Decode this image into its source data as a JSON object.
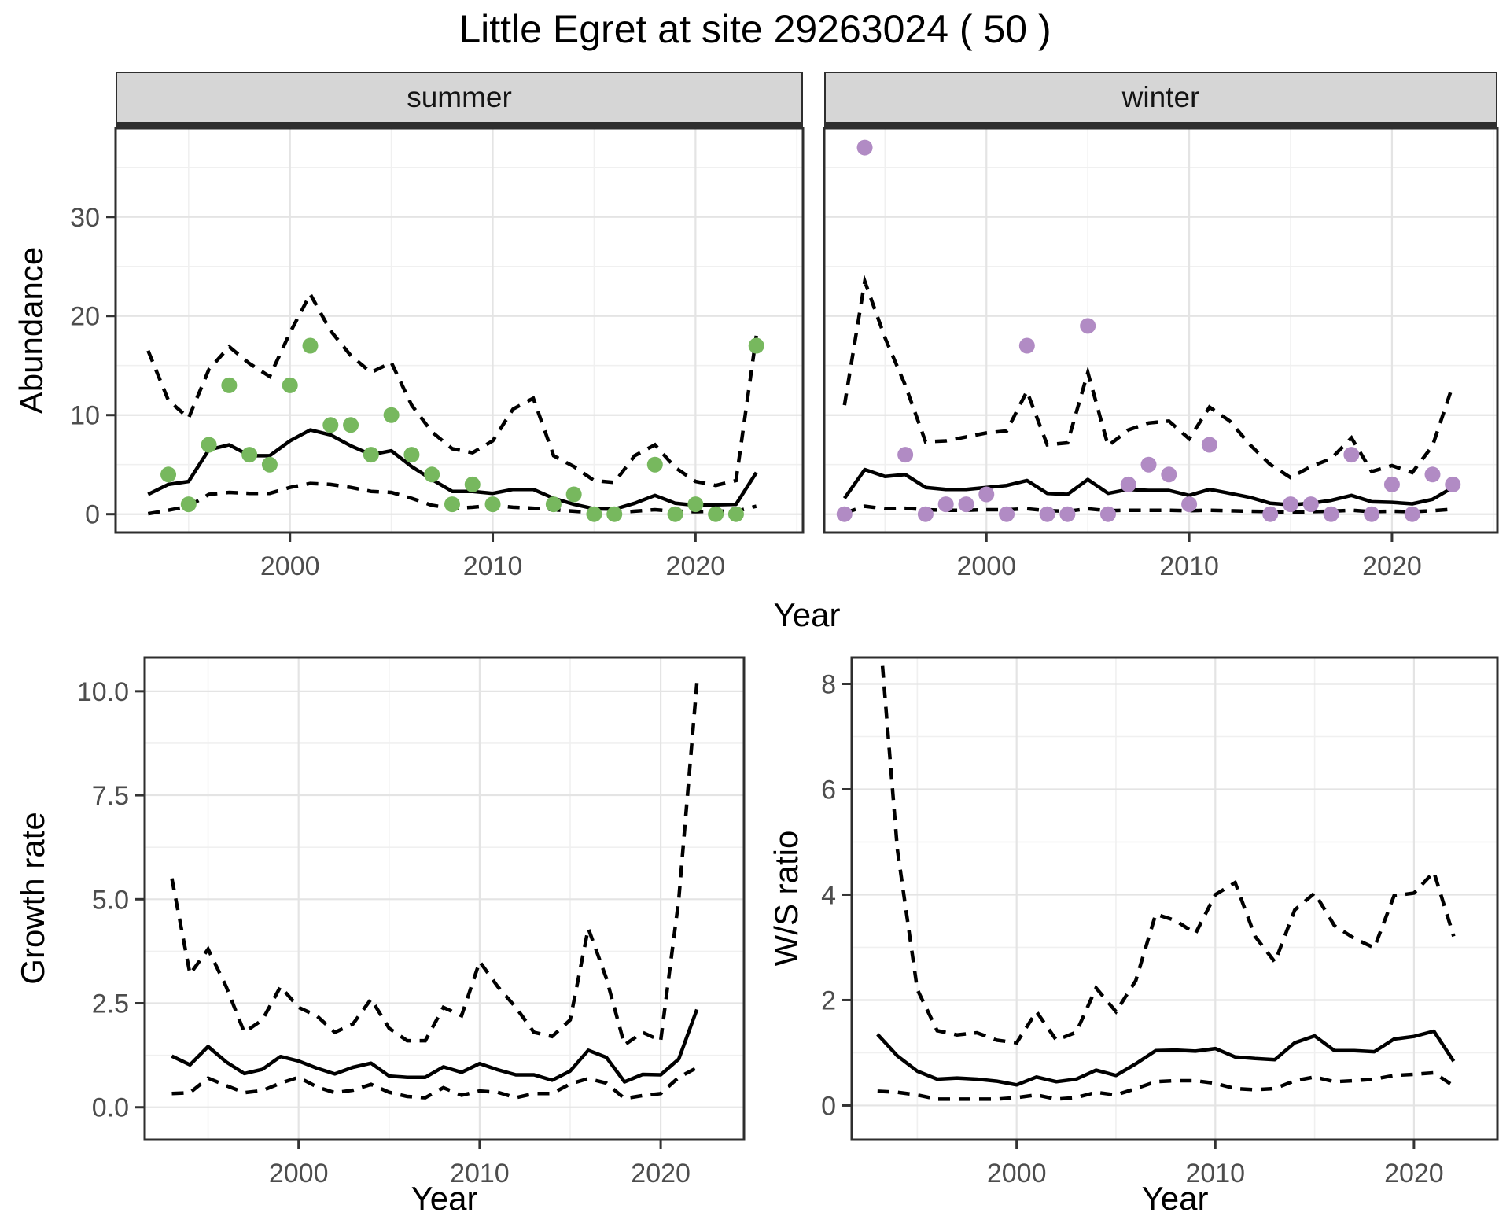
{
  "title": "Little Egret at site 29263024 ( 50 )",
  "facets": [
    "summer",
    "winter"
  ],
  "labels": {
    "year": "Year",
    "abundance": "Abundance",
    "growth_rate": "Growth rate",
    "ws_ratio": "W/S ratio"
  },
  "colors": {
    "summer_point": "#77B85E",
    "winter_point": "#B18BC4",
    "line": "#000000",
    "panel_border": "#2e2e2e",
    "grid_major": "#e4e4e4",
    "grid_minor": "#f0f0f0",
    "tick_text": "#4d4d4d",
    "strip_bg": "#d6d6d6"
  },
  "chart_data": [
    {
      "id": "summer",
      "type": "line+scatter",
      "facet_label": "summer",
      "xlabel": "Year",
      "ylabel": "Abundance",
      "xlim": [
        1991.4,
        2025.3
      ],
      "ylim": [
        -1.85,
        38.95
      ],
      "x_ticks": [
        2000,
        2010,
        2020
      ],
      "x_tick_labels": [
        "2000",
        "2010",
        "2020"
      ],
      "x_minor": [
        1995,
        2005,
        2015,
        2025
      ],
      "y_ticks": [
        0,
        10,
        20,
        30
      ],
      "y_tick_labels": [
        "0",
        "10",
        "20",
        "30"
      ],
      "y_minor": [
        5,
        15,
        25,
        35
      ],
      "show_y_tick_labels": true,
      "point_color": "#77B85E",
      "points": {
        "years": [
          1994,
          1995,
          1996,
          1997,
          1998,
          1999,
          2000,
          2001,
          2002,
          2003,
          2004,
          2005,
          2006,
          2007,
          2008,
          2009,
          2010,
          2013,
          2014,
          2015,
          2016,
          2018,
          2019,
          2020,
          2021,
          2022,
          2023
        ],
        "values": [
          4,
          1,
          7,
          13,
          6,
          5,
          13,
          17,
          9,
          9,
          6,
          10,
          6,
          4,
          1,
          3,
          1,
          1,
          2,
          0,
          0,
          5,
          0,
          1,
          0,
          0,
          17
        ]
      },
      "series": {
        "years": [
          1993,
          1994,
          1995,
          1996,
          1997,
          1998,
          1999,
          2000,
          2001,
          2002,
          2003,
          2004,
          2005,
          2006,
          2007,
          2008,
          2009,
          2010,
          2011,
          2012,
          2013,
          2014,
          2015,
          2016,
          2017,
          2018,
          2019,
          2020,
          2021,
          2022,
          2023
        ],
        "mean": [
          2.0,
          3.0,
          3.3,
          6.5,
          7.0,
          5.9,
          5.9,
          7.4,
          8.5,
          8.0,
          6.9,
          6.0,
          6.4,
          4.8,
          3.5,
          2.3,
          2.3,
          2.1,
          2.5,
          2.5,
          1.6,
          1.0,
          0.55,
          0.5,
          1.1,
          1.9,
          1.1,
          0.9,
          0.95,
          1.0,
          4.2
        ],
        "upper": [
          16.5,
          11.5,
          9.7,
          14.6,
          16.9,
          15.2,
          13.9,
          18.3,
          22.2,
          18.5,
          16.0,
          14.3,
          15.3,
          11.0,
          8.3,
          6.6,
          6.2,
          7.4,
          10.6,
          11.7,
          5.9,
          4.8,
          3.4,
          3.2,
          5.9,
          7.0,
          4.7,
          3.3,
          2.9,
          3.4,
          18.0
        ],
        "lower": [
          0.05,
          0.4,
          0.8,
          2.0,
          2.2,
          2.1,
          2.1,
          2.7,
          3.1,
          3.0,
          2.7,
          2.3,
          2.2,
          1.6,
          0.9,
          0.6,
          0.7,
          0.9,
          0.7,
          0.6,
          0.45,
          0.3,
          0.15,
          0.15,
          0.3,
          0.45,
          0.3,
          0.25,
          0.3,
          0.3,
          0.8
        ]
      }
    },
    {
      "id": "winter",
      "type": "line+scatter",
      "facet_label": "winter",
      "xlabel": "Year",
      "ylabel": "Abundance",
      "xlim": [
        1992.0,
        2025.2
      ],
      "ylim": [
        -1.85,
        38.95
      ],
      "x_ticks": [
        2000,
        2010,
        2020
      ],
      "x_tick_labels": [
        "2000",
        "2010",
        "2020"
      ],
      "x_minor": [
        1995,
        2005,
        2015,
        2025
      ],
      "y_ticks": [
        0,
        10,
        20,
        30
      ],
      "y_tick_labels": [
        "0",
        "10",
        "20",
        "30"
      ],
      "y_minor": [
        5,
        15,
        25,
        35
      ],
      "show_y_tick_labels": false,
      "point_color": "#B18BC4",
      "points": {
        "years": [
          1993,
          1994,
          1996,
          1997,
          1998,
          1999,
          2000,
          2001,
          2002,
          2003,
          2004,
          2005,
          2006,
          2007,
          2008,
          2009,
          2010,
          2011,
          2014,
          2015,
          2016,
          2017,
          2018,
          2019,
          2020,
          2021,
          2022,
          2023
        ],
        "values": [
          0,
          37,
          6,
          0,
          1,
          1,
          2,
          0,
          17,
          0,
          0,
          19,
          0,
          3,
          5,
          4,
          1,
          7,
          0,
          1,
          1,
          0,
          6,
          0,
          3,
          0,
          4,
          3
        ]
      },
      "series": {
        "years": [
          1993,
          1994,
          1995,
          1996,
          1997,
          1998,
          1999,
          2000,
          2001,
          2002,
          2003,
          2004,
          2005,
          2006,
          2007,
          2008,
          2009,
          2010,
          2011,
          2012,
          2013,
          2014,
          2015,
          2016,
          2017,
          2018,
          2019,
          2020,
          2021,
          2022,
          2023
        ],
        "mean": [
          1.6,
          4.5,
          3.8,
          4.0,
          2.7,
          2.5,
          2.5,
          2.7,
          2.9,
          3.4,
          2.1,
          2.0,
          3.5,
          2.1,
          2.5,
          2.4,
          2.4,
          1.9,
          2.5,
          2.1,
          1.7,
          1.1,
          0.95,
          1.1,
          1.4,
          1.9,
          1.25,
          1.2,
          1.05,
          1.5,
          2.7
        ],
        "upper": [
          11.0,
          23.5,
          17.8,
          13.0,
          7.3,
          7.4,
          7.8,
          8.2,
          8.4,
          12.4,
          7.0,
          7.2,
          14.3,
          6.9,
          8.5,
          9.2,
          9.4,
          7.6,
          10.8,
          9.4,
          7.0,
          5.0,
          3.7,
          4.8,
          5.6,
          7.7,
          4.3,
          4.9,
          4.2,
          6.9,
          13.0
        ],
        "lower": [
          0.1,
          0.8,
          0.55,
          0.6,
          0.45,
          0.4,
          0.4,
          0.45,
          0.45,
          0.55,
          0.35,
          0.3,
          0.55,
          0.35,
          0.4,
          0.4,
          0.4,
          0.35,
          0.4,
          0.35,
          0.3,
          0.25,
          0.2,
          0.25,
          0.3,
          0.4,
          0.25,
          0.3,
          0.25,
          0.35,
          0.5
        ]
      }
    },
    {
      "id": "growth",
      "type": "line",
      "facet_label": null,
      "xlabel": "Year",
      "ylabel": "Growth rate",
      "xlim": [
        1991.5,
        2024.6
      ],
      "ylim": [
        -0.78,
        10.81
      ],
      "x_ticks": [
        2000,
        2010,
        2020
      ],
      "x_tick_labels": [
        "2000",
        "2010",
        "2020"
      ],
      "x_minor": [
        1995,
        2005,
        2015
      ],
      "y_ticks": [
        0.0,
        2.5,
        5.0,
        7.5,
        10.0
      ],
      "y_tick_labels": [
        "0.0",
        "2.5",
        "5.0",
        "7.5",
        "10.0"
      ],
      "y_minor": [
        1.25,
        3.75,
        6.25,
        8.75
      ],
      "show_y_tick_labels": true,
      "point_color": null,
      "points": null,
      "series": {
        "years": [
          1993,
          1994,
          1995,
          1996,
          1997,
          1998,
          1999,
          2000,
          2001,
          2002,
          2003,
          2004,
          2005,
          2006,
          2007,
          2008,
          2009,
          2010,
          2011,
          2012,
          2013,
          2014,
          2015,
          2016,
          2017,
          2018,
          2019,
          2020,
          2021,
          2022
        ],
        "mean": [
          1.23,
          1.02,
          1.46,
          1.09,
          0.81,
          0.91,
          1.22,
          1.11,
          0.94,
          0.8,
          0.96,
          1.06,
          0.75,
          0.72,
          0.72,
          0.97,
          0.84,
          1.05,
          0.9,
          0.78,
          0.78,
          0.65,
          0.87,
          1.37,
          1.2,
          0.61,
          0.79,
          0.78,
          1.16,
          2.35
        ],
        "upper": [
          5.5,
          3.2,
          3.8,
          2.9,
          1.8,
          2.1,
          2.9,
          2.4,
          2.2,
          1.8,
          2.0,
          2.6,
          1.9,
          1.6,
          1.6,
          2.4,
          2.2,
          3.5,
          2.9,
          2.4,
          1.8,
          1.7,
          2.1,
          4.3,
          3.1,
          1.5,
          1.8,
          1.6,
          5.0,
          10.2
        ],
        "lower": [
          0.33,
          0.35,
          0.7,
          0.52,
          0.35,
          0.4,
          0.58,
          0.72,
          0.49,
          0.35,
          0.41,
          0.55,
          0.36,
          0.26,
          0.23,
          0.47,
          0.29,
          0.39,
          0.36,
          0.23,
          0.33,
          0.33,
          0.56,
          0.69,
          0.58,
          0.21,
          0.28,
          0.33,
          0.72,
          0.95
        ]
      }
    },
    {
      "id": "ws",
      "type": "line",
      "facet_label": null,
      "xlabel": "Year",
      "ylabel": "W/S ratio",
      "xlim": [
        1991.7,
        2024.2
      ],
      "ylim": [
        -0.65,
        8.5
      ],
      "x_ticks": [
        2000,
        2010,
        2020
      ],
      "x_tick_labels": [
        "2000",
        "2010",
        "2020"
      ],
      "x_minor": [
        1995,
        2005,
        2015
      ],
      "y_ticks": [
        0,
        2,
        4,
        6,
        8
      ],
      "y_tick_labels": [
        "0",
        "2",
        "4",
        "6",
        "8"
      ],
      "y_minor": [
        1,
        3,
        5,
        7
      ],
      "show_y_tick_labels": true,
      "point_color": null,
      "points": null,
      "series": {
        "years": [
          1993,
          1994,
          1995,
          1996,
          1997,
          1998,
          1999,
          2000,
          2001,
          2002,
          2003,
          2004,
          2005,
          2006,
          2007,
          2008,
          2009,
          2010,
          2011,
          2012,
          2013,
          2014,
          2015,
          2016,
          2017,
          2018,
          2019,
          2020,
          2021,
          2022
        ],
        "mean": [
          1.35,
          0.94,
          0.65,
          0.5,
          0.52,
          0.5,
          0.46,
          0.39,
          0.54,
          0.45,
          0.5,
          0.67,
          0.57,
          0.79,
          1.04,
          1.05,
          1.03,
          1.08,
          0.92,
          0.89,
          0.87,
          1.19,
          1.32,
          1.04,
          1.04,
          1.02,
          1.26,
          1.31,
          1.41,
          0.84
        ],
        "upper": [
          9.5,
          4.85,
          2.2,
          1.42,
          1.34,
          1.38,
          1.24,
          1.19,
          1.78,
          1.24,
          1.39,
          2.23,
          1.78,
          2.37,
          3.63,
          3.51,
          3.26,
          4.0,
          4.23,
          3.21,
          2.72,
          3.71,
          4.03,
          3.41,
          3.17,
          2.99,
          3.98,
          4.03,
          4.43,
          3.21
        ],
        "lower": [
          0.27,
          0.25,
          0.2,
          0.12,
          0.12,
          0.12,
          0.12,
          0.15,
          0.2,
          0.12,
          0.15,
          0.25,
          0.2,
          0.32,
          0.45,
          0.47,
          0.47,
          0.42,
          0.32,
          0.3,
          0.32,
          0.47,
          0.54,
          0.45,
          0.47,
          0.5,
          0.57,
          0.59,
          0.62,
          0.37
        ]
      }
    }
  ]
}
